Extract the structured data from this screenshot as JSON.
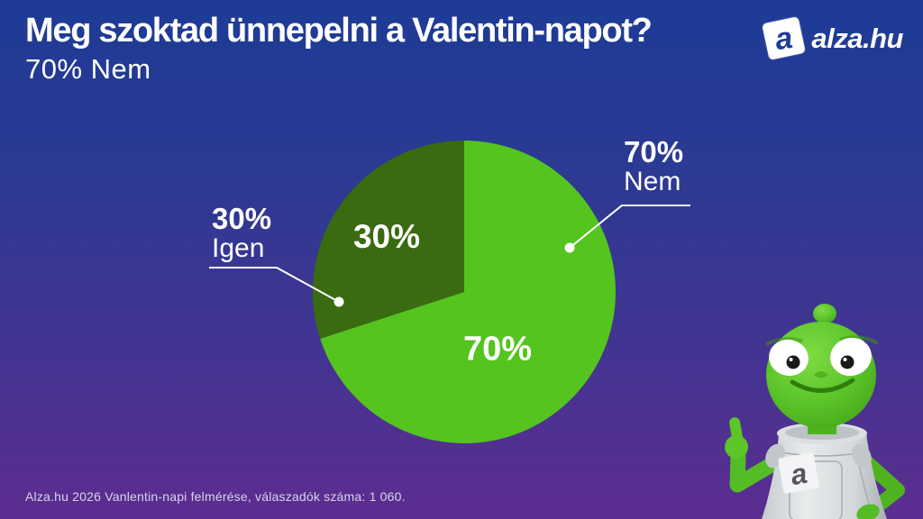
{
  "page": {
    "title": "Meg szoktad ünnepelni a Valentin-napot?",
    "subtitle": "70% Nem"
  },
  "logo": {
    "mark_letter": "a",
    "text": "alza.hu"
  },
  "chart_data": {
    "type": "pie",
    "title": "Meg szoktad ünnepelni a Valentin-napot?",
    "subtitle": "70% Nem",
    "start_angle": "top",
    "direction": "clockwise",
    "radius_px": 168,
    "slices": [
      {
        "label": "Nem",
        "value": 70,
        "display": "70%",
        "color": "#55C41E"
      },
      {
        "label": "Igen",
        "value": 30,
        "display": "30%",
        "color": "#3A6B10"
      }
    ],
    "legend": "none",
    "label_style": "percent inside slices, percent + answer in outside callouts with leader lines"
  },
  "callouts": [
    {
      "percent": "70%",
      "label": "Nem"
    },
    {
      "percent": "30%",
      "label": "Igen"
    }
  ],
  "footer": {
    "source": "Alza.hu 2026 Vanlentin-napi felmérése, válaszadók száma: 1 060."
  },
  "mascot": {
    "badge_letter": "a",
    "description": "green alien mascot with thumbs up wearing white suit"
  },
  "colors": {
    "background_top": "#1D3B96",
    "background_bottom": "#5C2D90",
    "slice_nem": "#55C41E",
    "slice_igen": "#3A6B10",
    "text": "#FFFFFF",
    "logo_blue": "#1E3C96"
  }
}
